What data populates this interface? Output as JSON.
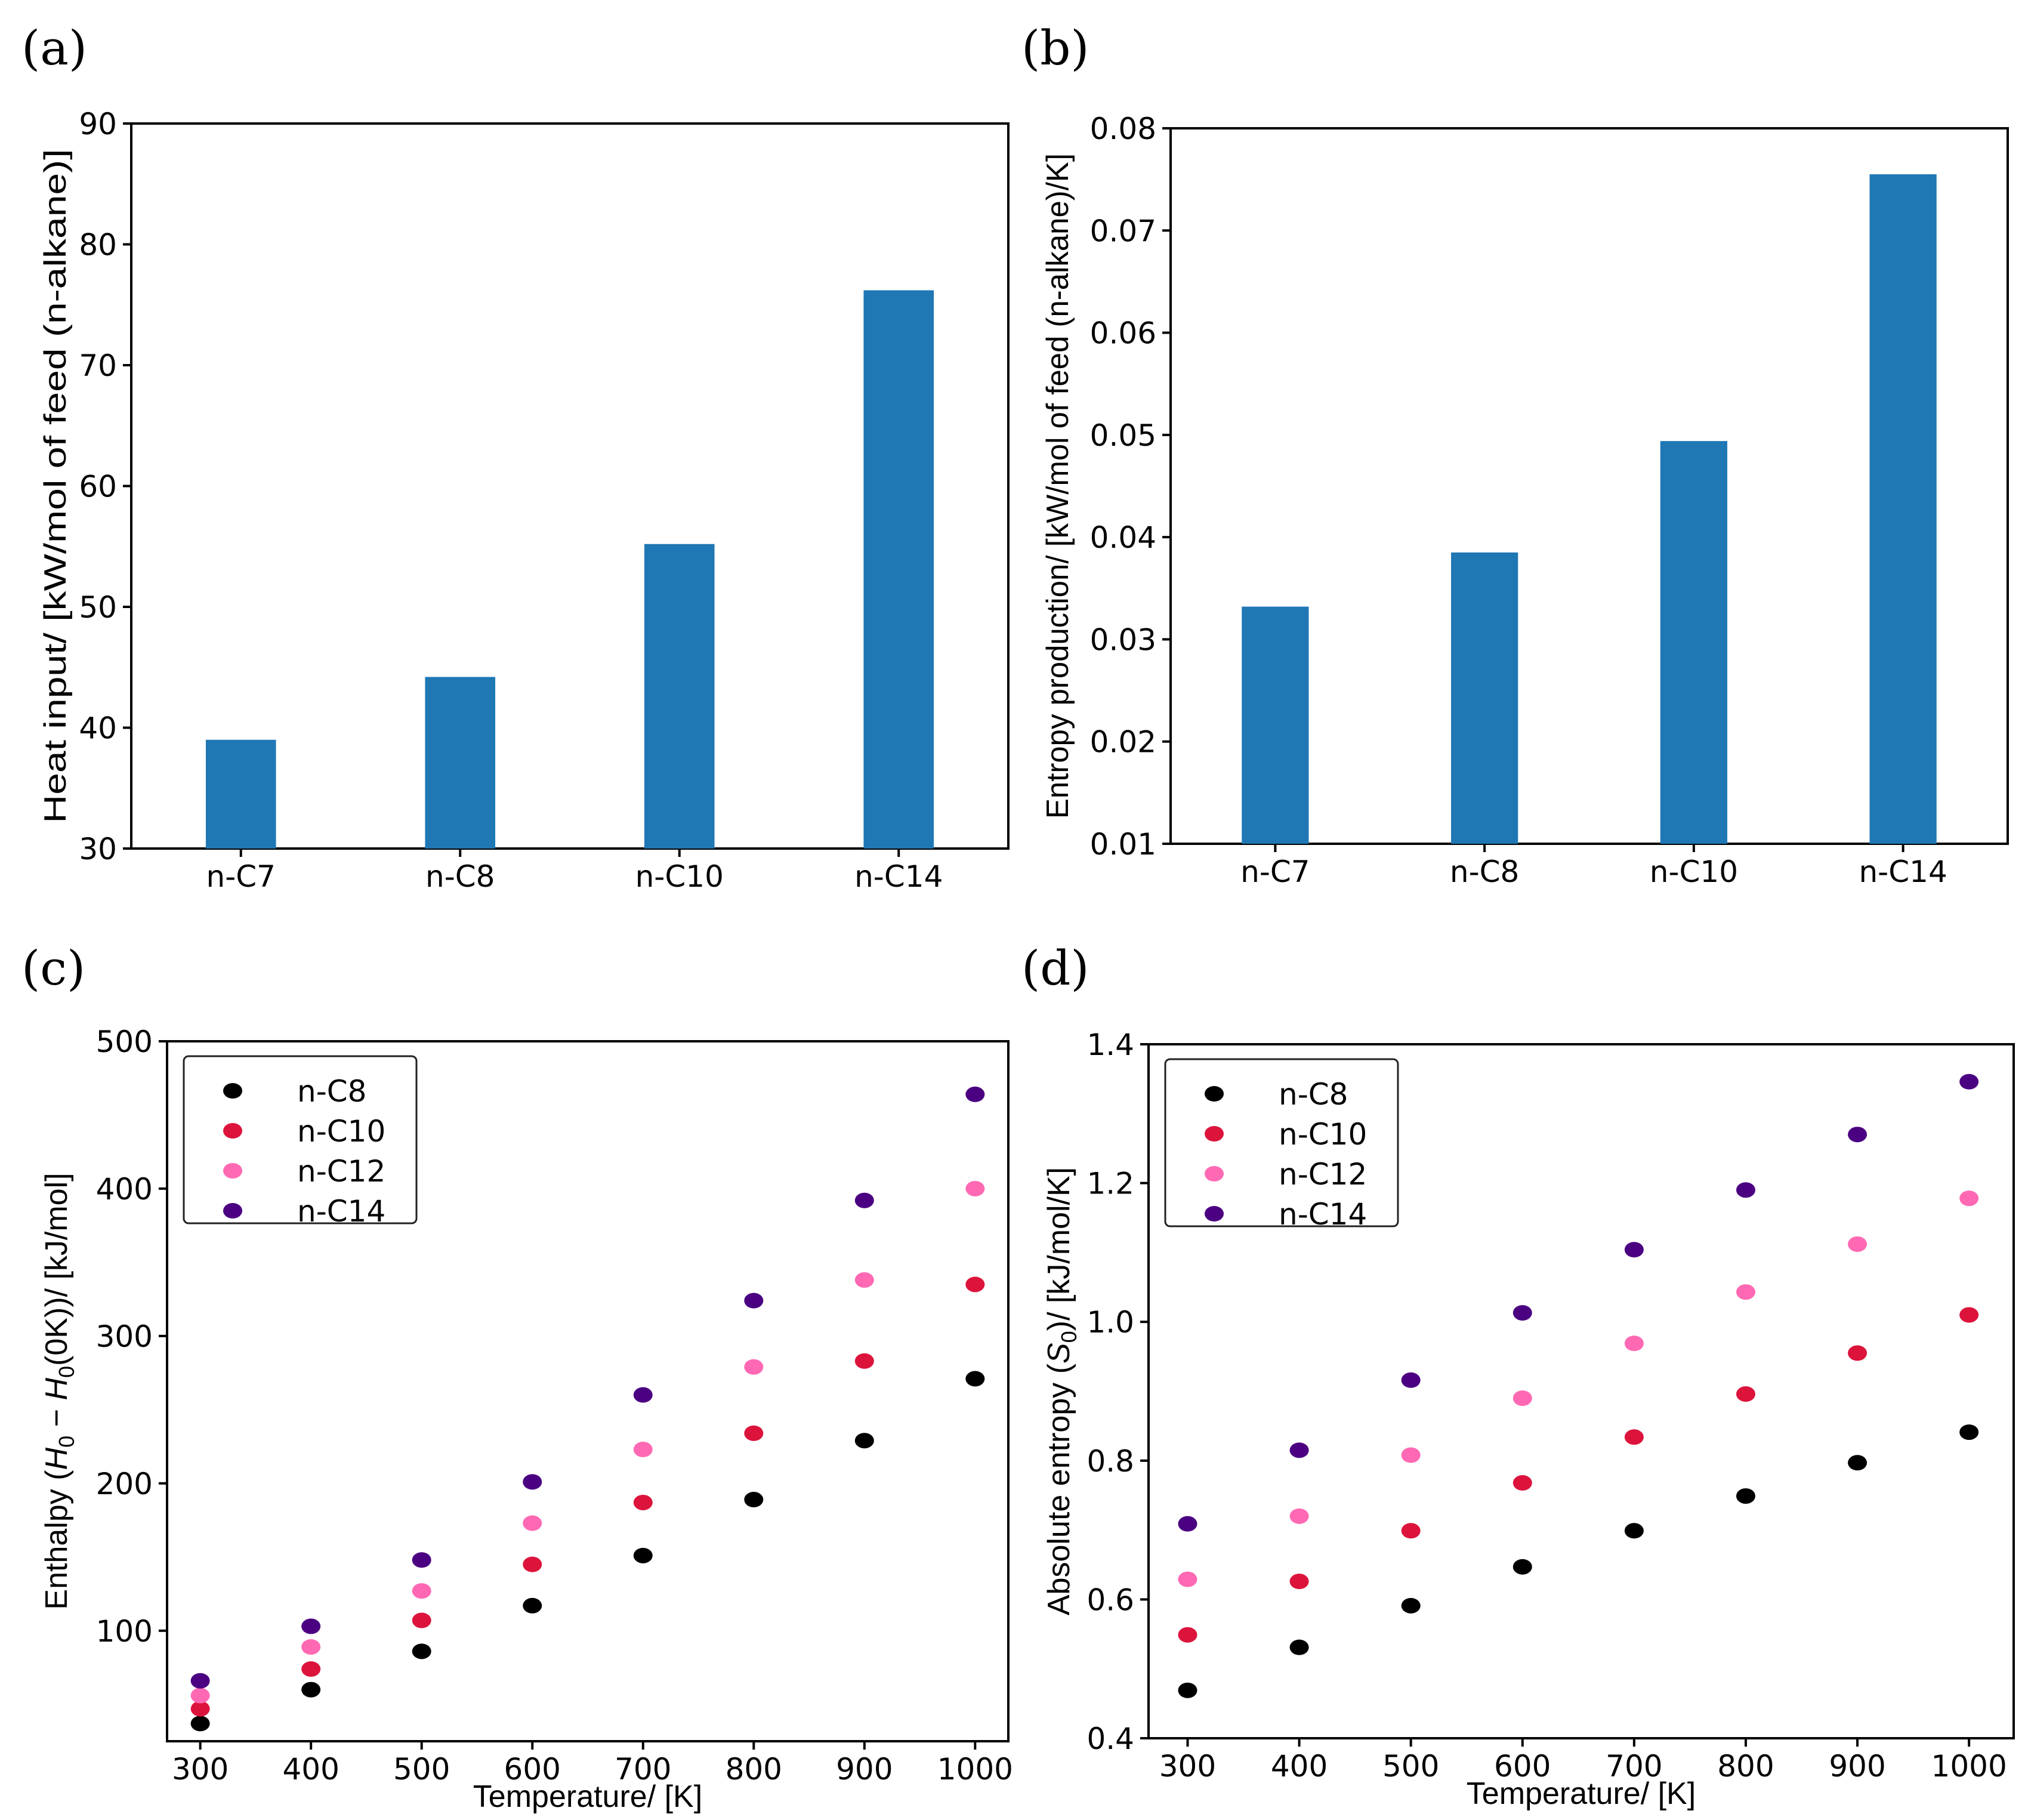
{
  "chart_data": [
    {
      "panel": "(a)",
      "type": "bar",
      "categories": [
        "n-C7",
        "n-C8",
        "n-C10",
        "n-C14"
      ],
      "values": [
        39.0,
        44.2,
        55.2,
        76.2
      ],
      "ylabel": "Heat input/ [kW/mol of feed (n-alkane)]",
      "xlabel": "",
      "ylim": [
        30,
        90
      ],
      "yticks": [
        30,
        40,
        50,
        60,
        70,
        80,
        90
      ],
      "yticks_labels": [
        "30",
        "40",
        "50",
        "60",
        "70",
        "80",
        "90"
      ],
      "color": "#1f77b4",
      "grid": false
    },
    {
      "panel": "(b)",
      "type": "bar",
      "categories": [
        "n-C7",
        "n-C8",
        "n-C10",
        "n-C14"
      ],
      "values": [
        0.0332,
        0.0385,
        0.0494,
        0.0755
      ],
      "ylabel": "Entropy production/ [kW/mol of feed (n-alkane)/K]",
      "xlabel": "",
      "ylim": [
        0.01,
        0.08
      ],
      "yticks": [
        0.01,
        0.02,
        0.03,
        0.04,
        0.05,
        0.06,
        0.07,
        0.08
      ],
      "yticks_labels": [
        "0.01",
        "0.02",
        "0.03",
        "0.04",
        "0.05",
        "0.06",
        "0.07",
        "0.08"
      ],
      "color": "#1f77b4",
      "grid": false
    },
    {
      "panel": "(c)",
      "type": "scatter",
      "x": [
        300,
        400,
        500,
        600,
        700,
        800,
        900,
        1000
      ],
      "xlim": [
        270,
        1030
      ],
      "xticks": [
        300,
        400,
        500,
        600,
        700,
        800,
        900,
        1000
      ],
      "xticks_labels": [
        "300",
        "400",
        "500",
        "600",
        "700",
        "800",
        "900",
        "1000"
      ],
      "ylim": [
        25,
        500
      ],
      "yticks": [
        100,
        200,
        300,
        400,
        500
      ],
      "yticks_labels": [
        "100",
        "200",
        "300",
        "400",
        "500"
      ],
      "xlabel": "Temperature/ [K]",
      "ylabel_parts": [
        "Enthalpy (",
        "H",
        "0",
        " − ",
        "H",
        "0",
        "(0K))/ [kJ/mol]"
      ],
      "legend_position": "top-left",
      "grid": false,
      "series": [
        {
          "name": "n-C8",
          "color": "#000000",
          "values": [
            37,
            60,
            86,
            117,
            151,
            189,
            229,
            271
          ]
        },
        {
          "name": "n-C10",
          "color": "#dc143c",
          "values": [
            47,
            74,
            107,
            145,
            187,
            234,
            283,
            335
          ]
        },
        {
          "name": "n-C12",
          "color": "#ff69b4",
          "values": [
            56,
            89,
            127,
            173,
            223,
            279,
            338,
            400
          ]
        },
        {
          "name": "n-C14",
          "color": "#4b0082",
          "values": [
            66,
            103,
            148,
            201,
            260,
            324,
            392,
            464
          ]
        }
      ]
    },
    {
      "panel": "(d)",
      "type": "scatter",
      "x": [
        300,
        400,
        500,
        600,
        700,
        800,
        900,
        1000
      ],
      "xlim": [
        265,
        1040
      ],
      "xticks": [
        300,
        400,
        500,
        600,
        700,
        800,
        900,
        1000
      ],
      "xticks_labels": [
        "300",
        "400",
        "500",
        "600",
        "700",
        "800",
        "900",
        "1000"
      ],
      "ylim": [
        0.4,
        1.4
      ],
      "yticks": [
        0.4,
        0.6,
        0.8,
        1.0,
        1.2,
        1.4
      ],
      "yticks_labels": [
        "0.4",
        "0.6",
        "0.8",
        "1.0",
        "1.2",
        "1.4"
      ],
      "xlabel": "Temperature/ [K]",
      "ylabel_parts": [
        "Absolute entropy (",
        "S",
        "0",
        ")/ [kJ/mol/K]"
      ],
      "legend_position": "top-left",
      "grid": false,
      "series": [
        {
          "name": "n-C8",
          "color": "#000000",
          "values": [
            0.469,
            0.531,
            0.591,
            0.647,
            0.699,
            0.749,
            0.797,
            0.841
          ]
        },
        {
          "name": "n-C10",
          "color": "#dc143c",
          "values": [
            0.549,
            0.626,
            0.699,
            0.768,
            0.834,
            0.896,
            0.955,
            1.01
          ]
        },
        {
          "name": "n-C12",
          "color": "#ff69b4",
          "values": [
            0.629,
            0.72,
            0.808,
            0.89,
            0.969,
            1.043,
            1.112,
            1.178
          ]
        },
        {
          "name": "n-C14",
          "color": "#4b0082",
          "values": [
            0.709,
            0.815,
            0.916,
            1.013,
            1.104,
            1.19,
            1.27,
            1.346
          ]
        }
      ]
    }
  ]
}
